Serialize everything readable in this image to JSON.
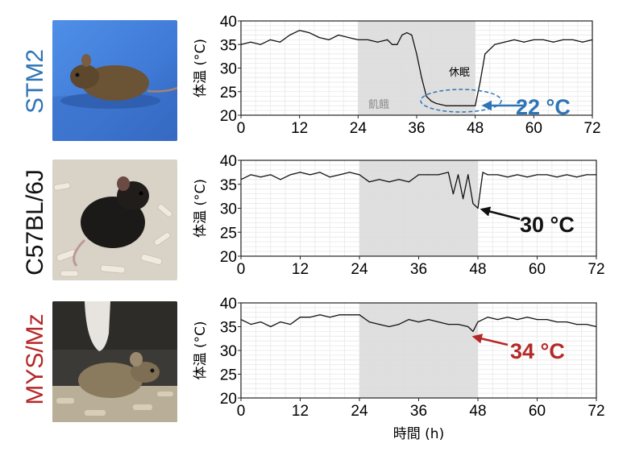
{
  "strains": [
    {
      "label": "STM2",
      "color": "#2e75b6"
    },
    {
      "label": "C57BL/6J",
      "color": "#111111"
    },
    {
      "label": "MYS/Mz",
      "color": "#b52828"
    }
  ],
  "photos": [
    {
      "icon": "brown-mouse-on-blue-icon"
    },
    {
      "icon": "black-mouse-on-bedding-icon"
    },
    {
      "icon": "agouti-mouse-on-bedding-icon"
    }
  ],
  "chart_data": [
    {
      "type": "line",
      "series_name": "STM2",
      "ylabel": "体温 (°C)",
      "xlabel": "",
      "xlim": [
        0,
        72
      ],
      "ylim": [
        20,
        40
      ],
      "xticks": [
        0,
        12,
        24,
        36,
        48,
        60,
        72
      ],
      "yticks": [
        20,
        25,
        30,
        35,
        40
      ],
      "grid": true,
      "shaded": {
        "from": 24,
        "to": 48,
        "color": "#dcdcdc"
      },
      "annotations": {
        "fasting": "飢餓",
        "torpor": "休眠",
        "min_temp": "22 °C"
      },
      "line_color": "#111111",
      "x": [
        0,
        2,
        4,
        6,
        8,
        10,
        12,
        14,
        16,
        18,
        20,
        22,
        24,
        26,
        28,
        30,
        31,
        32,
        33,
        34,
        35,
        36,
        37,
        38,
        39,
        40,
        42,
        44,
        46,
        48,
        49,
        50,
        52,
        54,
        56,
        58,
        60,
        62,
        64,
        66,
        68,
        70,
        72
      ],
      "y": [
        35,
        35.5,
        35,
        36,
        35.5,
        37,
        38,
        37.5,
        36.5,
        36,
        37,
        36.5,
        36,
        36,
        35.5,
        36,
        35,
        35,
        37,
        37.5,
        37,
        33,
        28,
        24,
        23,
        22.5,
        22,
        22,
        22,
        22,
        27,
        33,
        35,
        35.5,
        36,
        35.5,
        36,
        36,
        35.5,
        36,
        36,
        35.5,
        36
      ]
    },
    {
      "type": "line",
      "series_name": "C57BL/6J",
      "ylabel": "体温 (°C)",
      "xlabel": "",
      "xlim": [
        0,
        72
      ],
      "ylim": [
        20,
        40
      ],
      "xticks": [
        0,
        12,
        24,
        36,
        48,
        60,
        72
      ],
      "yticks": [
        20,
        25,
        30,
        35,
        40
      ],
      "grid": true,
      "shaded": {
        "from": 24,
        "to": 48,
        "color": "#dcdcdc"
      },
      "annotations": {
        "min_temp": "30 °C"
      },
      "line_color": "#111111",
      "x": [
        0,
        2,
        4,
        6,
        8,
        10,
        12,
        14,
        16,
        18,
        20,
        22,
        24,
        26,
        28,
        30,
        32,
        34,
        36,
        38,
        40,
        42,
        43,
        44,
        45,
        46,
        47,
        48,
        49,
        50,
        52,
        54,
        56,
        58,
        60,
        62,
        64,
        66,
        68,
        70,
        72
      ],
      "y": [
        36,
        37,
        36.5,
        37,
        36,
        37,
        37.5,
        37,
        37.5,
        36.5,
        37,
        37.5,
        37,
        35.5,
        36,
        35.5,
        36,
        35.5,
        37,
        37,
        37,
        37.5,
        33,
        37,
        32,
        37,
        31,
        30,
        37.5,
        37,
        37,
        36.5,
        37,
        36.5,
        37,
        37,
        36.5,
        37,
        36.5,
        37,
        37
      ]
    },
    {
      "type": "line",
      "series_name": "MYS/Mz",
      "ylabel": "体温 (°C)",
      "xlabel": "時間 (h)",
      "xlim": [
        0,
        72
      ],
      "ylim": [
        20,
        40
      ],
      "xticks": [
        0,
        12,
        24,
        36,
        48,
        60,
        72
      ],
      "yticks": [
        20,
        25,
        30,
        35,
        40
      ],
      "grid": true,
      "shaded": {
        "from": 24,
        "to": 48,
        "color": "#dcdcdc"
      },
      "annotations": {
        "min_temp": "34 °C"
      },
      "line_color": "#111111",
      "x": [
        0,
        2,
        4,
        6,
        8,
        10,
        12,
        14,
        16,
        18,
        20,
        22,
        24,
        26,
        28,
        30,
        32,
        34,
        36,
        38,
        40,
        42,
        44,
        46,
        47,
        48,
        50,
        52,
        54,
        56,
        58,
        60,
        62,
        64,
        66,
        68,
        70,
        72
      ],
      "y": [
        36.5,
        35.5,
        36,
        35,
        36,
        35.5,
        37,
        37,
        37.5,
        37,
        37.5,
        37.5,
        37.5,
        36,
        35.5,
        35,
        35.5,
        36.5,
        36,
        36.5,
        36,
        35.5,
        35.5,
        35,
        34,
        36,
        37,
        36.5,
        37,
        36.5,
        37,
        36.5,
        36.5,
        36,
        36,
        35.5,
        35.5,
        35
      ]
    }
  ]
}
